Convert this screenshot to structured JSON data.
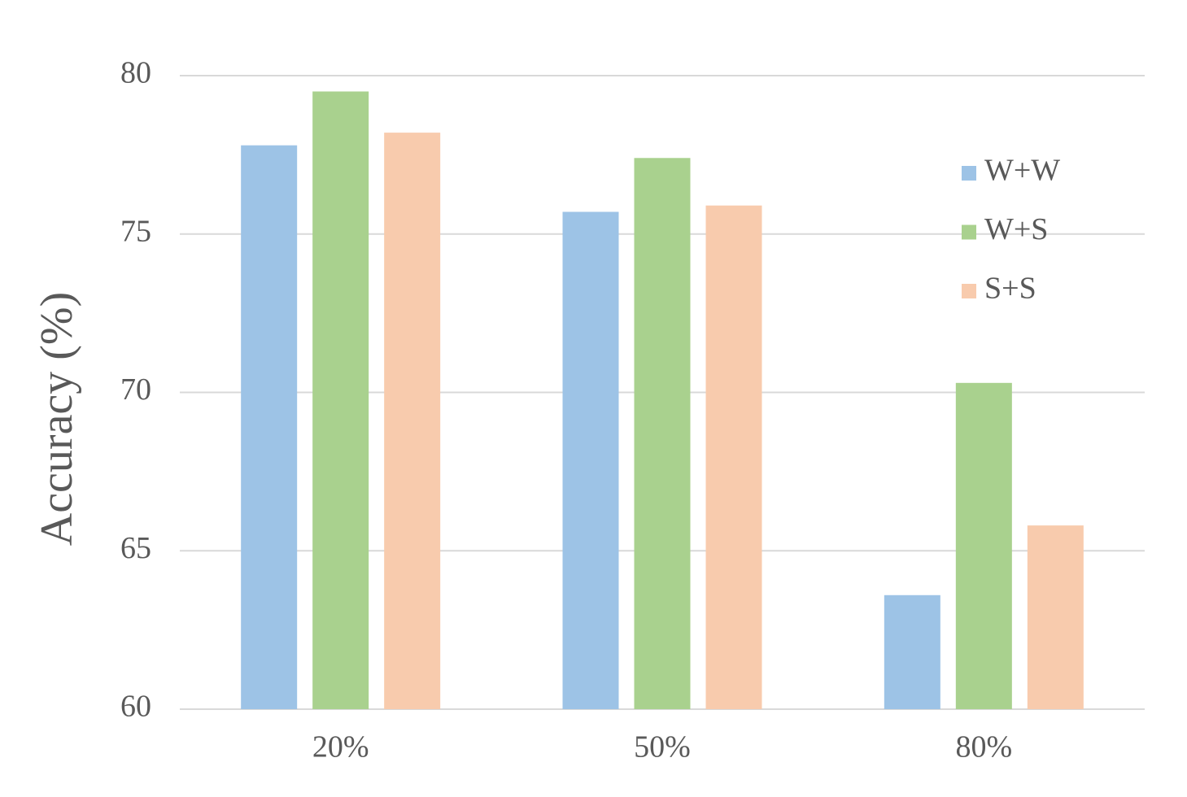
{
  "chart_data": {
    "type": "bar",
    "y_label": "Accuracy (%)",
    "categories": [
      "20%",
      "50%",
      "80%"
    ],
    "series": [
      {
        "name": "W+W",
        "color": "#9dc3e6",
        "values": [
          77.8,
          75.7,
          63.6
        ]
      },
      {
        "name": "W+S",
        "color": "#a9d18e",
        "values": [
          79.5,
          77.4,
          70.3
        ]
      },
      {
        "name": "S+S",
        "color": "#f8cbad",
        "values": [
          78.2,
          75.9,
          65.8
        ]
      }
    ],
    "ylim": [
      60,
      80
    ],
    "yticks": [
      60,
      65,
      70,
      75,
      80
    ],
    "grid": true,
    "legend": "right"
  }
}
